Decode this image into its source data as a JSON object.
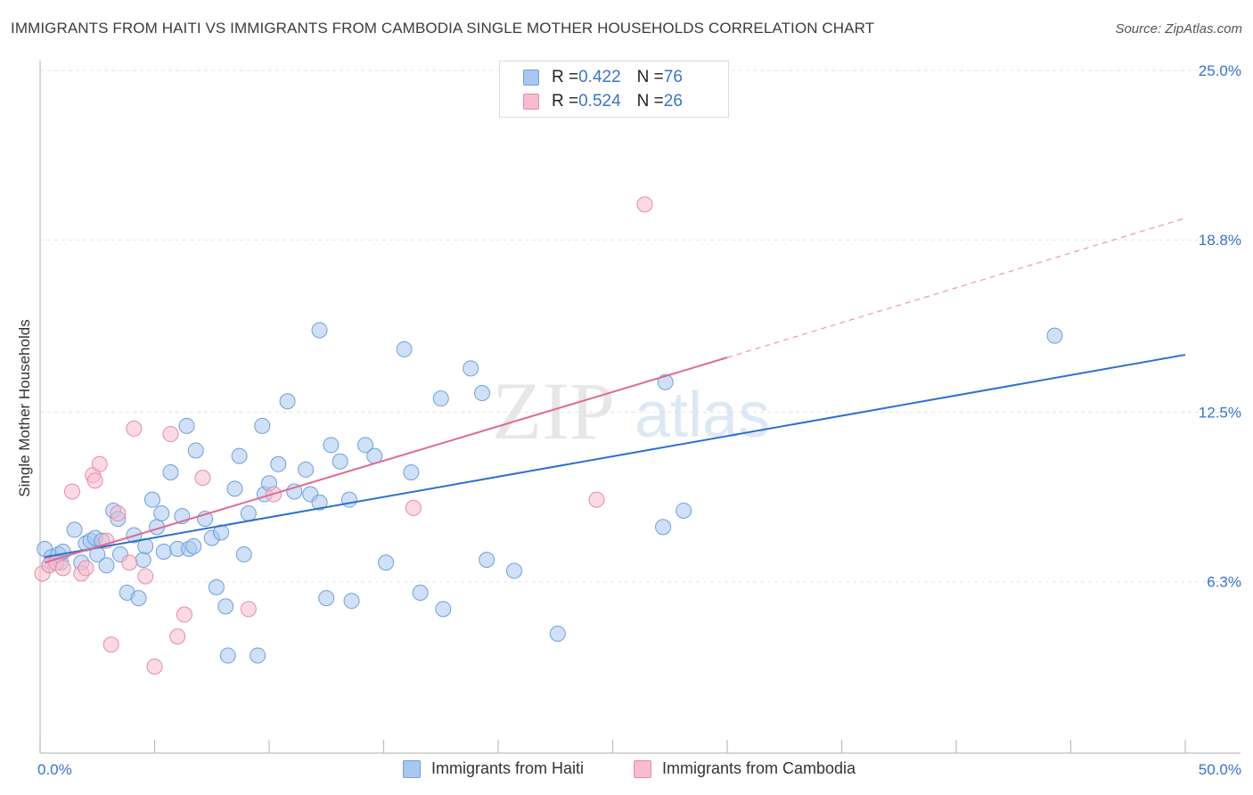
{
  "title": "IMMIGRANTS FROM HAITI VS IMMIGRANTS FROM CAMBODIA SINGLE MOTHER HOUSEHOLDS CORRELATION CHART",
  "source": "Source: ZipAtlas.com",
  "watermark": {
    "zip": "ZIP",
    "atlas": "atlas"
  },
  "legend_top": {
    "rows": [
      {
        "r_label": "R = ",
        "r_value": "0.422",
        "n_label": "N = ",
        "n_value": "76"
      },
      {
        "r_label": "R = ",
        "r_value": "0.524",
        "n_label": "N = ",
        "n_value": "26"
      }
    ]
  },
  "colors": {
    "haiti_fill": "#a8c6f0",
    "haiti_stroke": "#6f9fdc",
    "haiti_line": "#2e6fce",
    "cambodia_fill": "#f7bccd",
    "cambodia_stroke": "#e88aa8",
    "cambodia_line": "#e06a93",
    "grid": "#e3e3e3",
    "tick_label": "#3a73c9"
  },
  "chart_data": {
    "type": "scatter",
    "title": "IMMIGRANTS FROM HAITI VS IMMIGRANTS FROM CAMBODIA SINGLE MOTHER HOUSEHOLDS CORRELATION CHART",
    "xlabel": "",
    "ylabel": "Single Mother Households",
    "xlim": [
      0,
      50
    ],
    "ylim": [
      0,
      25
    ],
    "x_tick_labels": [
      "0.0%",
      "50.0%"
    ],
    "y_ticks": [
      6.3,
      12.5,
      18.8,
      25.0
    ],
    "y_tick_labels": [
      "6.3%",
      "12.5%",
      "18.8%",
      "25.0%"
    ],
    "grid": true,
    "legend_position": "top-center and bottom",
    "series": [
      {
        "name": "Immigrants from Haiti",
        "r": 0.422,
        "n": 76,
        "trend": {
          "x": [
            0.2,
            50.0
          ],
          "y": [
            7.2,
            14.6
          ],
          "style": "solid"
        },
        "points": [
          [
            0.2,
            7.5
          ],
          [
            0.4,
            6.9
          ],
          [
            0.5,
            7.2
          ],
          [
            0.8,
            7.3
          ],
          [
            0.9,
            7.0
          ],
          [
            1.0,
            7.4
          ],
          [
            1.5,
            8.2
          ],
          [
            1.8,
            7.0
          ],
          [
            2.0,
            7.7
          ],
          [
            2.2,
            7.8
          ],
          [
            2.4,
            7.9
          ],
          [
            2.5,
            7.3
          ],
          [
            2.7,
            7.8
          ],
          [
            2.9,
            6.9
          ],
          [
            3.2,
            8.9
          ],
          [
            3.4,
            8.6
          ],
          [
            3.5,
            7.3
          ],
          [
            3.8,
            5.9
          ],
          [
            4.1,
            8.0
          ],
          [
            4.3,
            5.7
          ],
          [
            4.5,
            7.1
          ],
          [
            4.6,
            7.6
          ],
          [
            4.9,
            9.3
          ],
          [
            5.1,
            8.3
          ],
          [
            5.3,
            8.8
          ],
          [
            5.4,
            7.4
          ],
          [
            5.7,
            10.3
          ],
          [
            6.0,
            7.5
          ],
          [
            6.2,
            8.7
          ],
          [
            6.4,
            12.0
          ],
          [
            6.5,
            7.5
          ],
          [
            6.7,
            7.6
          ],
          [
            6.8,
            11.1
          ],
          [
            7.2,
            8.6
          ],
          [
            7.5,
            7.9
          ],
          [
            7.7,
            6.1
          ],
          [
            7.9,
            8.1
          ],
          [
            8.1,
            5.4
          ],
          [
            8.2,
            3.6
          ],
          [
            8.5,
            9.7
          ],
          [
            8.7,
            10.9
          ],
          [
            8.9,
            7.3
          ],
          [
            9.1,
            8.8
          ],
          [
            9.5,
            3.6
          ],
          [
            9.7,
            12.0
          ],
          [
            9.8,
            9.5
          ],
          [
            10.0,
            9.9
          ],
          [
            10.4,
            10.6
          ],
          [
            10.8,
            12.9
          ],
          [
            11.1,
            9.6
          ],
          [
            11.6,
            10.4
          ],
          [
            11.8,
            9.5
          ],
          [
            12.2,
            15.5
          ],
          [
            12.2,
            9.2
          ],
          [
            12.5,
            5.7
          ],
          [
            12.7,
            11.3
          ],
          [
            13.1,
            10.7
          ],
          [
            13.5,
            9.3
          ],
          [
            13.6,
            5.6
          ],
          [
            14.2,
            11.3
          ],
          [
            14.6,
            10.9
          ],
          [
            15.1,
            7.0
          ],
          [
            15.9,
            14.8
          ],
          [
            16.2,
            10.3
          ],
          [
            16.6,
            5.9
          ],
          [
            17.5,
            13.0
          ],
          [
            17.6,
            5.3
          ],
          [
            18.8,
            14.1
          ],
          [
            19.3,
            13.2
          ],
          [
            19.5,
            7.1
          ],
          [
            20.7,
            6.7
          ],
          [
            22.6,
            4.4
          ],
          [
            27.2,
            8.3
          ],
          [
            27.3,
            13.6
          ],
          [
            28.1,
            8.9
          ],
          [
            44.3,
            15.3
          ]
        ]
      },
      {
        "name": "Immigrants from Cambodia",
        "r": 0.524,
        "n": 26,
        "trend": {
          "x": [
            0.2,
            30.0
          ],
          "y": [
            7.0,
            14.5
          ],
          "style": "solid"
        },
        "trend_extension": {
          "x": [
            30.0,
            50.0
          ],
          "y": [
            14.5,
            19.6
          ],
          "style": "dashed"
        },
        "points": [
          [
            0.1,
            6.6
          ],
          [
            0.4,
            6.9
          ],
          [
            0.7,
            7.0
          ],
          [
            1.0,
            6.8
          ],
          [
            1.4,
            9.6
          ],
          [
            1.8,
            6.6
          ],
          [
            2.0,
            6.8
          ],
          [
            2.3,
            10.2
          ],
          [
            2.4,
            10.0
          ],
          [
            2.6,
            10.6
          ],
          [
            2.9,
            7.8
          ],
          [
            3.1,
            4.0
          ],
          [
            3.4,
            8.8
          ],
          [
            3.9,
            7.0
          ],
          [
            4.1,
            11.9
          ],
          [
            4.6,
            6.5
          ],
          [
            5.0,
            3.2
          ],
          [
            5.7,
            11.7
          ],
          [
            6.0,
            4.3
          ],
          [
            6.3,
            5.1
          ],
          [
            7.1,
            10.1
          ],
          [
            9.1,
            5.3
          ],
          [
            10.2,
            9.5
          ],
          [
            16.3,
            9.0
          ],
          [
            24.3,
            9.3
          ],
          [
            26.4,
            20.1
          ]
        ]
      }
    ]
  },
  "legend_bottom": [
    {
      "label": "Immigrants from Haiti"
    },
    {
      "label": "Immigrants from Cambodia"
    }
  ]
}
